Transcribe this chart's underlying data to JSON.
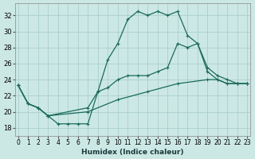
{
  "xlabel": "Humidex (Indice chaleur)",
  "bg_color": "#cce8e5",
  "grid_color": "#aacfcc",
  "line_color": "#1a6b5a",
  "x_ticks": [
    0,
    1,
    2,
    3,
    4,
    5,
    6,
    7,
    8,
    9,
    10,
    11,
    12,
    13,
    14,
    15,
    16,
    17,
    18,
    19,
    20,
    21,
    22,
    23
  ],
  "y_ticks": [
    18,
    20,
    22,
    24,
    26,
    28,
    30,
    32
  ],
  "xlim": [
    -0.3,
    23.3
  ],
  "ylim": [
    17.0,
    33.5
  ],
  "series": [
    {
      "x": [
        0,
        1,
        2,
        3,
        4,
        5,
        6,
        7,
        8,
        9,
        10,
        11,
        12,
        13,
        14,
        15,
        16,
        17,
        18,
        19,
        20,
        21,
        22,
        23
      ],
      "y": [
        23.3,
        21.0,
        20.5,
        19.5,
        18.5,
        18.5,
        18.5,
        18.5,
        22.5,
        26.5,
        28.5,
        31.5,
        32.5,
        32.0,
        32.5,
        32.0,
        32.5,
        29.5,
        28.5,
        25.0,
        24.0,
        23.5,
        23.5,
        23.5
      ]
    },
    {
      "x": [
        0,
        1,
        2,
        3,
        7,
        8,
        9,
        10,
        11,
        12,
        13,
        14,
        15,
        16,
        17,
        18,
        19,
        20,
        21,
        22,
        23
      ],
      "y": [
        23.3,
        21.0,
        20.5,
        19.5,
        20.5,
        22.5,
        23.0,
        24.0,
        24.5,
        24.5,
        24.5,
        25.0,
        25.5,
        28.5,
        28.0,
        28.5,
        25.5,
        24.5,
        24.0,
        23.5,
        23.5
      ]
    },
    {
      "x": [
        0,
        1,
        2,
        3,
        7,
        10,
        13,
        16,
        19,
        20,
        21,
        22,
        23
      ],
      "y": [
        23.3,
        21.0,
        20.5,
        19.5,
        20.0,
        21.5,
        22.5,
        23.5,
        24.0,
        24.0,
        23.5,
        23.5,
        23.5
      ]
    }
  ]
}
